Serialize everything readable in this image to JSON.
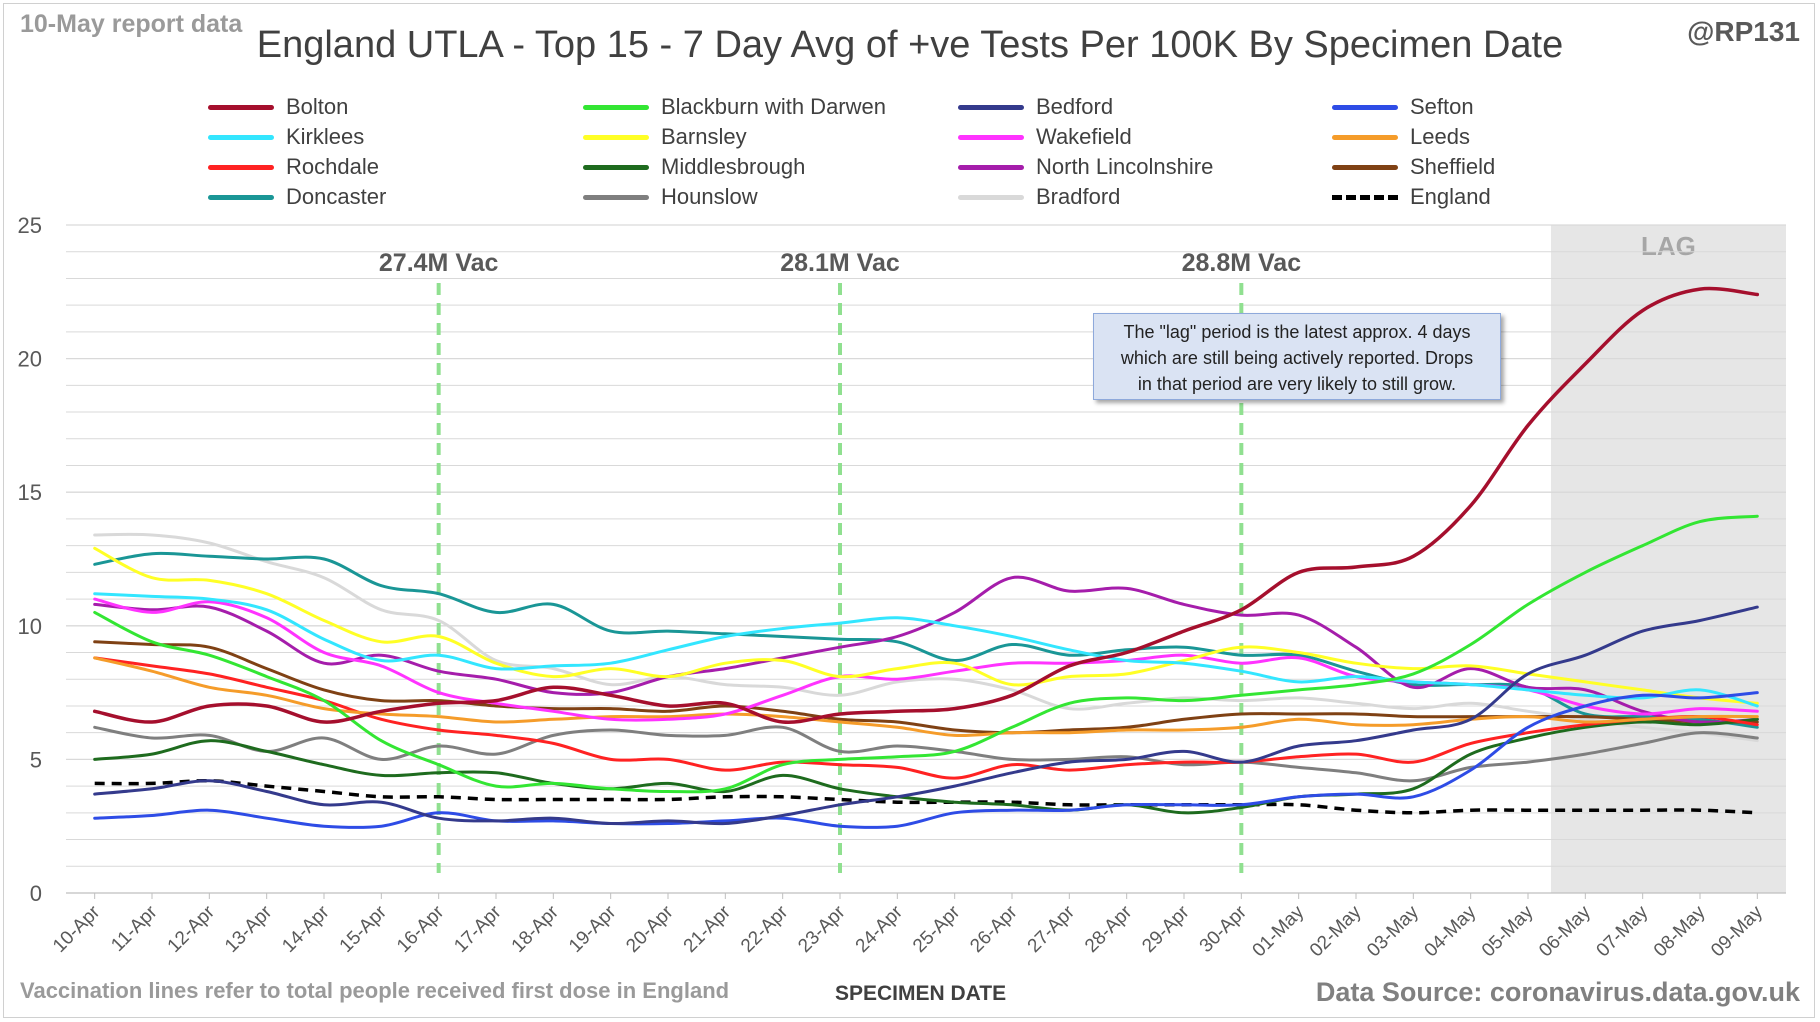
{
  "header": {
    "corner_left": "10-May report data",
    "corner_right": "@RP131",
    "title": "England UTLA - Top 15 - 7 Day Avg of +ve Tests Per 100K By Specimen Date"
  },
  "footer": {
    "left": "Vaccination lines refer to total people received first dose in England",
    "center": "SPECIMEN DATE",
    "right": "Data Source: coronavirus.data.gov.uk"
  },
  "note": {
    "line1": "The \"lag\" period is the latest approx. 4 days",
    "line2": "which are still being actively reported.  Drops",
    "line3": "in that period are very likely to still grow."
  },
  "colors": {
    "grid": "#d9d9d9",
    "axis_text": "#595959",
    "lag_shade": "#e6e6e6",
    "vac_line": "#90e090",
    "vac_text": "#595959"
  },
  "chart_data": {
    "type": "line",
    "title": "England UTLA - Top 15 - 7 Day Avg of +ve Tests Per 100K By Specimen Date",
    "xlabel": "SPECIMEN DATE",
    "ylabel": "",
    "ylim": [
      0,
      25
    ],
    "yticks": [
      0,
      5,
      10,
      15,
      20,
      25
    ],
    "grid": true,
    "legend_position": "top",
    "x": [
      "10-Apr",
      "11-Apr",
      "12-Apr",
      "13-Apr",
      "14-Apr",
      "15-Apr",
      "16-Apr",
      "17-Apr",
      "18-Apr",
      "19-Apr",
      "20-Apr",
      "21-Apr",
      "22-Apr",
      "23-Apr",
      "24-Apr",
      "25-Apr",
      "26-Apr",
      "27-Apr",
      "28-Apr",
      "29-Apr",
      "30-Apr",
      "01-May",
      "02-May",
      "03-May",
      "04-May",
      "05-May",
      "06-May",
      "07-May",
      "08-May",
      "09-May"
    ],
    "lag_region": {
      "from": "06-May",
      "to": "09-May",
      "label": "LAG"
    },
    "vaccination_lines": [
      {
        "x": "16-Apr",
        "label": "27.4M Vac"
      },
      {
        "x": "23-Apr",
        "label": "28.1M Vac"
      },
      {
        "x": "30-Apr",
        "label": "28.8M Vac"
      }
    ],
    "series": [
      {
        "name": "Bolton",
        "color": "#a50f2d",
        "width": 3.5,
        "values": [
          6.8,
          6.4,
          7.0,
          7.0,
          6.4,
          6.8,
          7.1,
          7.2,
          7.7,
          7.4,
          7.0,
          7.1,
          6.4,
          6.7,
          6.8,
          6.9,
          7.4,
          8.5,
          9.0,
          9.8,
          10.6,
          12.0,
          12.2,
          12.6,
          14.5,
          17.5,
          19.8,
          21.8,
          22.6,
          22.4
        ]
      },
      {
        "name": "Blackburn with Darwen",
        "color": "#33e633",
        "width": 3,
        "values": [
          10.5,
          9.4,
          8.9,
          8.1,
          7.2,
          5.7,
          4.8,
          4.0,
          4.1,
          3.9,
          3.8,
          3.9,
          4.8,
          5.0,
          5.1,
          5.3,
          6.2,
          7.1,
          7.3,
          7.2,
          7.4,
          7.6,
          7.8,
          8.2,
          9.3,
          10.8,
          12.0,
          13.0,
          13.9,
          14.1
        ]
      },
      {
        "name": "Bedford",
        "color": "#343a8c",
        "width": 3,
        "values": [
          3.7,
          3.9,
          4.2,
          3.8,
          3.3,
          3.4,
          2.8,
          2.7,
          2.8,
          2.6,
          2.7,
          2.6,
          2.9,
          3.3,
          3.6,
          4.0,
          4.5,
          4.9,
          5.0,
          5.3,
          4.9,
          5.5,
          5.7,
          6.1,
          6.5,
          8.2,
          8.9,
          9.8,
          10.2,
          10.7
        ]
      },
      {
        "name": "Sefton",
        "color": "#2e4ce6",
        "width": 3,
        "values": [
          2.8,
          2.9,
          3.1,
          2.8,
          2.5,
          2.5,
          3.0,
          2.7,
          2.7,
          2.6,
          2.6,
          2.7,
          2.8,
          2.5,
          2.5,
          3.0,
          3.1,
          3.1,
          3.3,
          3.3,
          3.3,
          3.6,
          3.7,
          3.6,
          4.6,
          6.2,
          7.0,
          7.4,
          7.3,
          7.5
        ]
      },
      {
        "name": "Kirklees",
        "color": "#33e6ff",
        "width": 3,
        "values": [
          11.2,
          11.1,
          11.0,
          10.6,
          9.5,
          8.7,
          8.9,
          8.4,
          8.5,
          8.6,
          9.1,
          9.6,
          9.9,
          10.1,
          10.3,
          10.0,
          9.6,
          9.1,
          8.7,
          8.6,
          8.3,
          7.9,
          8.1,
          7.9,
          7.8,
          7.6,
          7.4,
          7.3,
          7.6,
          7.0
        ]
      },
      {
        "name": "Barnsley",
        "color": "#ffff26",
        "width": 3,
        "values": [
          12.9,
          11.8,
          11.7,
          11.2,
          10.2,
          9.4,
          9.6,
          8.6,
          8.1,
          8.4,
          8.1,
          8.6,
          8.7,
          8.1,
          8.4,
          8.6,
          7.8,
          8.1,
          8.2,
          8.7,
          9.2,
          9.0,
          8.6,
          8.4,
          8.5,
          8.2,
          7.9,
          7.6,
          7.3,
          7.1
        ]
      },
      {
        "name": "Wakefield",
        "color": "#ff33ff",
        "width": 3,
        "values": [
          11.0,
          10.5,
          10.9,
          10.3,
          9.0,
          8.5,
          7.5,
          7.1,
          6.8,
          6.5,
          6.5,
          6.7,
          7.4,
          8.1,
          8.0,
          8.3,
          8.6,
          8.6,
          8.7,
          8.9,
          8.6,
          8.8,
          8.1,
          7.9,
          7.8,
          7.6,
          7.0,
          6.7,
          6.9,
          6.8
        ]
      },
      {
        "name": "Leeds",
        "color": "#f59c2a",
        "width": 3,
        "values": [
          8.8,
          8.3,
          7.7,
          7.4,
          6.9,
          6.7,
          6.6,
          6.4,
          6.5,
          6.6,
          6.6,
          6.7,
          6.6,
          6.4,
          6.2,
          5.9,
          6.0,
          6.0,
          6.1,
          6.1,
          6.2,
          6.5,
          6.3,
          6.3,
          6.5,
          6.6,
          6.4,
          6.5,
          6.6,
          6.6
        ]
      },
      {
        "name": "Rochdale",
        "color": "#ff2222",
        "width": 3,
        "values": [
          8.8,
          8.5,
          8.2,
          7.7,
          7.2,
          6.5,
          6.1,
          5.9,
          5.6,
          5.0,
          5.0,
          4.6,
          4.9,
          4.8,
          4.7,
          4.3,
          4.8,
          4.6,
          4.8,
          4.9,
          4.9,
          5.1,
          5.2,
          4.9,
          5.6,
          6.0,
          6.3,
          6.5,
          6.6,
          6.3
        ]
      },
      {
        "name": "Middlesbrough",
        "color": "#1e6b1e",
        "width": 3,
        "values": [
          5.0,
          5.2,
          5.7,
          5.3,
          4.8,
          4.4,
          4.5,
          4.5,
          4.1,
          3.9,
          4.1,
          3.8,
          4.4,
          3.9,
          3.6,
          3.4,
          3.3,
          3.1,
          3.3,
          3.0,
          3.2,
          3.6,
          3.7,
          3.9,
          5.2,
          5.8,
          6.2,
          6.4,
          6.3,
          6.5
        ]
      },
      {
        "name": "North Lincolnshire",
        "color": "#a51dab",
        "width": 3,
        "values": [
          10.8,
          10.6,
          10.7,
          9.8,
          8.6,
          8.9,
          8.3,
          8.0,
          7.5,
          7.5,
          8.1,
          8.4,
          8.8,
          9.2,
          9.6,
          10.5,
          11.8,
          11.3,
          11.4,
          10.8,
          10.4,
          10.4,
          9.2,
          7.7,
          8.4,
          7.7,
          7.6,
          6.8,
          6.4,
          6.5
        ]
      },
      {
        "name": "Sheffield",
        "color": "#7f4114",
        "width": 3,
        "values": [
          9.4,
          9.3,
          9.2,
          8.4,
          7.6,
          7.2,
          7.2,
          7.0,
          6.9,
          6.9,
          6.8,
          7.0,
          6.8,
          6.5,
          6.4,
          6.1,
          6.0,
          6.1,
          6.2,
          6.5,
          6.7,
          6.7,
          6.7,
          6.6,
          6.6,
          6.6,
          6.6,
          6.5,
          6.4,
          6.4
        ]
      },
      {
        "name": "Doncaster",
        "color": "#1a9696",
        "width": 3,
        "values": [
          12.3,
          12.7,
          12.6,
          12.5,
          12.5,
          11.5,
          11.2,
          10.5,
          10.8,
          9.8,
          9.8,
          9.7,
          9.6,
          9.5,
          9.4,
          8.7,
          9.3,
          8.9,
          9.1,
          9.2,
          8.9,
          8.9,
          8.3,
          7.8,
          7.8,
          7.7,
          6.7,
          6.6,
          6.5,
          6.2
        ]
      },
      {
        "name": "Hounslow",
        "color": "#7f7f7f",
        "width": 3,
        "values": [
          6.2,
          5.8,
          5.9,
          5.3,
          5.8,
          5.0,
          5.5,
          5.2,
          5.9,
          6.1,
          5.9,
          5.9,
          6.2,
          5.3,
          5.5,
          5.3,
          5.0,
          5.0,
          5.1,
          4.8,
          4.9,
          4.7,
          4.5,
          4.2,
          4.7,
          4.9,
          5.2,
          5.6,
          6.0,
          5.8
        ]
      },
      {
        "name": "Bradford",
        "color": "#d9d9d9",
        "width": 3,
        "values": [
          13.4,
          13.4,
          13.1,
          12.4,
          11.8,
          10.6,
          10.2,
          8.7,
          8.4,
          7.8,
          8.1,
          7.8,
          7.7,
          7.4,
          7.9,
          8.0,
          7.6,
          6.9,
          7.1,
          7.3,
          7.2,
          7.3,
          7.1,
          6.9,
          7.1,
          6.8,
          6.5,
          6.2,
          6.0,
          5.7
        ]
      },
      {
        "name": "England",
        "color": "#000000",
        "width": 3.5,
        "dashed": true,
        "values": [
          4.1,
          4.1,
          4.2,
          4.0,
          3.8,
          3.6,
          3.6,
          3.5,
          3.5,
          3.5,
          3.5,
          3.6,
          3.6,
          3.5,
          3.4,
          3.4,
          3.4,
          3.3,
          3.3,
          3.3,
          3.3,
          3.3,
          3.1,
          3.0,
          3.1,
          3.1,
          3.1,
          3.1,
          3.1,
          3.0
        ]
      }
    ]
  }
}
